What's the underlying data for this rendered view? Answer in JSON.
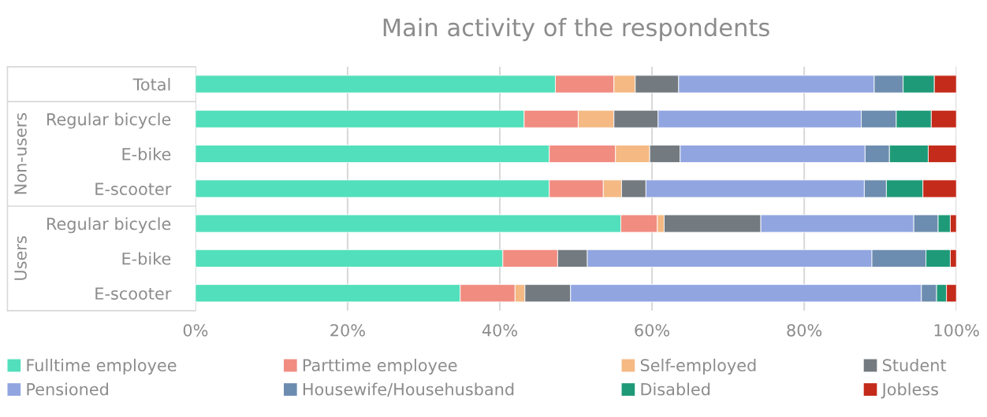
{
  "chart_data": {
    "type": "bar",
    "orientation": "horizontal",
    "stacked": true,
    "title": "Main activity of the respondents",
    "categories": [
      "Total",
      "Regular bicycle",
      "E-bike",
      "E-scooter",
      "Regular bicycle",
      "E-bike",
      "E-scooter"
    ],
    "annotations": [
      "Non-users",
      "Users"
    ],
    "series": [
      {
        "name": "Fulltime employee",
        "color": "#52dfbb",
        "values": [
          47.3,
          43.2,
          46.5,
          46.5,
          55.9,
          40.4,
          34.8
        ]
      },
      {
        "name": "Parttime employee",
        "color": "#f18c81",
        "values": [
          7.7,
          7.1,
          8.7,
          7.1,
          4.8,
          7.2,
          7.2
        ]
      },
      {
        "name": "Self-employed",
        "color": "#f5b984",
        "values": [
          2.8,
          4.7,
          4.5,
          2.4,
          0.9,
          0,
          1.3
        ]
      },
      {
        "name": "Student",
        "color": "#737a80",
        "values": [
          5.7,
          5.8,
          4.0,
          3.2,
          12.7,
          3.9,
          6.0
        ]
      },
      {
        "name": "Pensioned",
        "color": "#91a5e1",
        "values": [
          25.7,
          26.7,
          24.3,
          28.7,
          20.1,
          37.4,
          46.1
        ]
      },
      {
        "name": "Housewife/Househusband",
        "color": "#6d8db0",
        "values": [
          3.8,
          4.6,
          3.2,
          2.9,
          3.2,
          7.1,
          2.0
        ]
      },
      {
        "name": "Disabled",
        "color": "#1f9a78",
        "values": [
          4.1,
          4.6,
          5.1,
          4.8,
          1.6,
          3.2,
          1.3
        ]
      },
      {
        "name": "Jobless",
        "color": "#c42b1a",
        "values": [
          2.9,
          3.3,
          3.7,
          4.4,
          0.8,
          0.8,
          1.3
        ]
      }
    ],
    "xlim": [
      0,
      100
    ],
    "xticks": [
      {
        "value": 0,
        "label": "0%"
      },
      {
        "value": 20,
        "label": "20%"
      },
      {
        "value": 40,
        "label": "40%"
      },
      {
        "value": 60,
        "label": "60%"
      },
      {
        "value": 80,
        "label": "80%"
      },
      {
        "value": 100,
        "label": "100%"
      }
    ],
    "grid": "x",
    "legend": "bottom"
  }
}
